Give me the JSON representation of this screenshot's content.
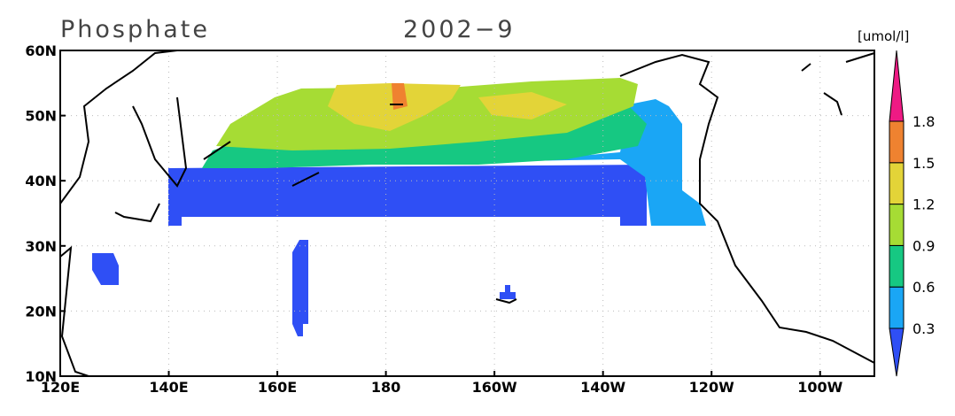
{
  "header": {
    "title": "Phosphate",
    "date": "2002−9",
    "unit": "[umol/l]"
  },
  "axes": {
    "x_labels": [
      "120E",
      "140E",
      "160E",
      "180",
      "160W",
      "140W",
      "120W",
      "100W"
    ],
    "y_labels": [
      "60N",
      "50N",
      "40N",
      "30N",
      "20N",
      "10N"
    ]
  },
  "colorbar": {
    "levels": [
      0.3,
      0.6,
      0.9,
      1.2,
      1.5,
      1.8
    ],
    "colors": [
      "#2f4ff5",
      "#1aa6f5",
      "#16c882",
      "#a6dc34",
      "#e3d438",
      "#ef8230",
      "#ee1a84"
    ]
  }
}
